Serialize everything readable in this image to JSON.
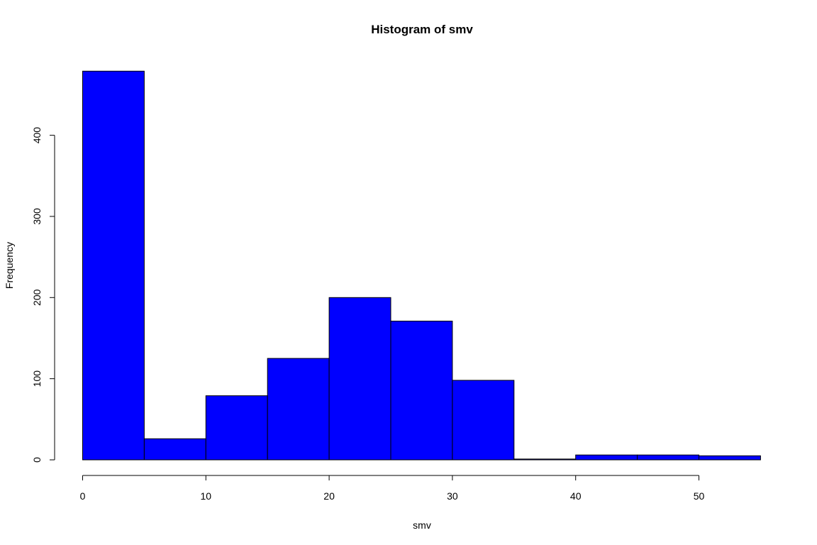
{
  "chart_data": {
    "type": "bar",
    "title": "Histogram of smv",
    "xlabel": "smv",
    "ylabel": "Frequency",
    "bins": [
      {
        "from": 0,
        "to": 5,
        "count": 479
      },
      {
        "from": 5,
        "to": 10,
        "count": 26
      },
      {
        "from": 10,
        "to": 15,
        "count": 79
      },
      {
        "from": 15,
        "to": 20,
        "count": 125
      },
      {
        "from": 20,
        "to": 25,
        "count": 200
      },
      {
        "from": 25,
        "to": 30,
        "count": 171
      },
      {
        "from": 30,
        "to": 35,
        "count": 98
      },
      {
        "from": 35,
        "to": 40,
        "count": 1
      },
      {
        "from": 40,
        "to": 45,
        "count": 6
      },
      {
        "from": 45,
        "to": 50,
        "count": 6
      },
      {
        "from": 50,
        "to": 55,
        "count": 5
      }
    ],
    "xticks": [
      0,
      10,
      20,
      30,
      40,
      50
    ],
    "yticks": [
      0,
      100,
      200,
      300,
      400
    ],
    "xlim": [
      0,
      55
    ],
    "ylim": [
      0,
      479
    ],
    "bar_color": "#0000ff",
    "grid": false
  }
}
